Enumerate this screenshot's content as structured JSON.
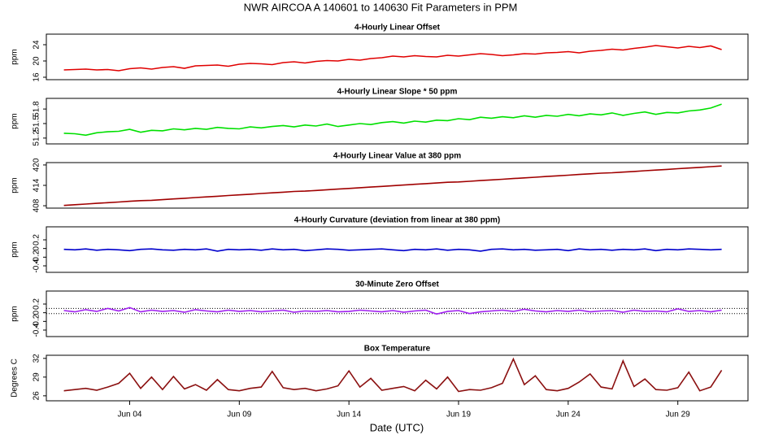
{
  "title": "NWR   AIRCOA A   140601 to 140630   Fit Parameters in PPM",
  "xlabel": "Date (UTC)",
  "chart_data": [
    {
      "type": "line",
      "title": "4-Hourly Linear Offset",
      "ylabel": "ppm",
      "color": "#e00000",
      "xlim": [
        0.2,
        32.2
      ],
      "ylim": [
        15.4,
        26.6
      ],
      "yticks": [
        16,
        20,
        24
      ],
      "x": [
        1,
        1.5,
        2,
        2.5,
        3,
        3.5,
        4,
        4.5,
        5,
        5.5,
        6,
        6.5,
        7,
        7.5,
        8,
        8.5,
        9,
        9.5,
        10,
        10.5,
        11,
        11.5,
        12,
        12.5,
        13,
        13.5,
        14,
        14.5,
        15,
        15.5,
        16,
        16.5,
        17,
        17.5,
        18,
        18.5,
        19,
        19.5,
        20,
        20.5,
        21,
        21.5,
        22,
        22.5,
        23,
        23.5,
        24,
        24.5,
        25,
        25.5,
        26,
        26.5,
        27,
        27.5,
        28,
        28.5,
        29,
        29.5,
        30,
        30.5,
        31
      ],
      "values": [
        17.8,
        17.9,
        18.0,
        17.8,
        17.9,
        17.6,
        18.1,
        18.3,
        18.0,
        18.4,
        18.6,
        18.2,
        18.8,
        18.9,
        19.0,
        18.7,
        19.2,
        19.4,
        19.3,
        19.1,
        19.6,
        19.8,
        19.5,
        19.9,
        20.1,
        20.0,
        20.4,
        20.2,
        20.6,
        20.8,
        21.2,
        21.0,
        21.3,
        21.1,
        21.0,
        21.4,
        21.2,
        21.5,
        21.8,
        21.6,
        21.3,
        21.5,
        21.8,
        21.7,
        22.0,
        22.1,
        22.3,
        22.0,
        22.4,
        22.6,
        22.9,
        22.7,
        23.1,
        23.4,
        23.8,
        23.5,
        23.2,
        23.6,
        23.3,
        23.7,
        22.8
      ]
    },
    {
      "type": "line",
      "title": "4-Hourly Linear Slope * 50 ppm",
      "ylabel": "ppm",
      "color": "#00e000",
      "xlim": [
        0.2,
        32.2
      ],
      "ylim": [
        51.08,
        52.02
      ],
      "yticks": [
        51.2,
        51.5,
        51.8
      ],
      "x": [
        1,
        1.5,
        2,
        2.5,
        3,
        3.5,
        4,
        4.5,
        5,
        5.5,
        6,
        6.5,
        7,
        7.5,
        8,
        8.5,
        9,
        9.5,
        10,
        10.5,
        11,
        11.5,
        12,
        12.5,
        13,
        13.5,
        14,
        14.5,
        15,
        15.5,
        16,
        16.5,
        17,
        17.5,
        18,
        18.5,
        19,
        19.5,
        20,
        20.5,
        21,
        21.5,
        22,
        22.5,
        23,
        23.5,
        24,
        24.5,
        25,
        25.5,
        26,
        26.5,
        27,
        27.5,
        28,
        28.5,
        29,
        29.5,
        30,
        30.5,
        31
      ],
      "values": [
        51.3,
        51.29,
        51.26,
        51.31,
        51.33,
        51.34,
        51.38,
        51.32,
        51.36,
        51.35,
        51.39,
        51.37,
        51.4,
        51.38,
        51.42,
        51.4,
        51.39,
        51.43,
        51.41,
        51.44,
        51.46,
        51.43,
        51.47,
        51.45,
        51.49,
        51.44,
        51.47,
        51.5,
        51.48,
        51.52,
        51.54,
        51.51,
        51.55,
        51.53,
        51.57,
        51.56,
        51.6,
        51.58,
        51.63,
        51.61,
        51.64,
        51.62,
        51.66,
        51.63,
        51.67,
        51.65,
        51.69,
        51.66,
        51.7,
        51.68,
        51.72,
        51.67,
        51.71,
        51.74,
        51.69,
        51.73,
        51.72,
        51.76,
        51.78,
        51.82,
        51.9
      ]
    },
    {
      "type": "line",
      "title": "4-Hourly Linear Value at 380 ppm",
      "ylabel": "ppm",
      "color": "#a00000",
      "xlim": [
        0.2,
        32.2
      ],
      "ylim": [
        407.3,
        420.7
      ],
      "yticks": [
        408,
        414,
        420
      ],
      "x": [
        1,
        1.5,
        2,
        2.5,
        3,
        3.5,
        4,
        4.5,
        5,
        5.5,
        6,
        6.5,
        7,
        7.5,
        8,
        8.5,
        9,
        9.5,
        10,
        10.5,
        11,
        11.5,
        12,
        12.5,
        13,
        13.5,
        14,
        14.5,
        15,
        15.5,
        16,
        16.5,
        17,
        17.5,
        18,
        18.5,
        19,
        19.5,
        20,
        20.5,
        21,
        21.5,
        22,
        22.5,
        23,
        23.5,
        24,
        24.5,
        25,
        25.5,
        26,
        26.5,
        27,
        27.5,
        28,
        28.5,
        29,
        29.5,
        30,
        30.5,
        31
      ],
      "values": [
        408.1,
        408.3,
        408.5,
        408.7,
        408.9,
        409.1,
        409.3,
        409.5,
        409.6,
        409.8,
        410.0,
        410.2,
        410.4,
        410.6,
        410.8,
        411.0,
        411.2,
        411.4,
        411.6,
        411.8,
        412.0,
        412.2,
        412.3,
        412.5,
        412.7,
        412.9,
        413.1,
        413.3,
        413.5,
        413.7,
        413.9,
        414.1,
        414.3,
        414.5,
        414.7,
        414.9,
        415.0,
        415.2,
        415.4,
        415.6,
        415.8,
        416.0,
        416.2,
        416.4,
        416.6,
        416.8,
        417.0,
        417.2,
        417.4,
        417.6,
        417.7,
        417.9,
        418.1,
        418.3,
        418.5,
        418.7,
        418.9,
        419.1,
        419.3,
        419.5,
        419.7
      ]
    },
    {
      "type": "line",
      "title": "4-Hourly Curvature (deviation from linear at 380 ppm)",
      "ylabel": "ppm",
      "color": "#0000cc",
      "xlim": [
        0.2,
        32.2
      ],
      "ylim": [
        -0.55,
        0.5
      ],
      "yticks": [
        -0.4,
        -0.2,
        0,
        0.2
      ],
      "x": [
        1,
        1.5,
        2,
        2.5,
        3,
        3.5,
        4,
        4.5,
        5,
        5.5,
        6,
        6.5,
        7,
        7.5,
        8,
        8.5,
        9,
        9.5,
        10,
        10.5,
        11,
        11.5,
        12,
        12.5,
        13,
        13.5,
        14,
        14.5,
        15,
        15.5,
        16,
        16.5,
        17,
        17.5,
        18,
        18.5,
        19,
        19.5,
        20,
        20.5,
        21,
        21.5,
        22,
        22.5,
        23,
        23.5,
        24,
        24.5,
        25,
        25.5,
        26,
        26.5,
        27,
        27.5,
        28,
        28.5,
        29,
        29.5,
        30,
        30.5,
        31
      ],
      "values": [
        -0.02,
        -0.03,
        -0.01,
        -0.04,
        -0.02,
        -0.03,
        -0.05,
        -0.02,
        -0.01,
        -0.03,
        -0.04,
        -0.02,
        -0.03,
        -0.01,
        -0.06,
        -0.02,
        -0.03,
        -0.02,
        -0.04,
        -0.01,
        -0.03,
        -0.02,
        -0.05,
        -0.03,
        -0.01,
        -0.02,
        -0.04,
        -0.03,
        -0.02,
        -0.01,
        -0.03,
        -0.05,
        -0.02,
        -0.03,
        -0.01,
        -0.04,
        -0.02,
        -0.03,
        -0.06,
        -0.02,
        -0.01,
        -0.03,
        -0.02,
        -0.04,
        -0.03,
        -0.02,
        -0.05,
        -0.01,
        -0.03,
        -0.02,
        -0.04,
        -0.02,
        -0.03,
        -0.01,
        -0.05,
        -0.02,
        -0.03,
        -0.01,
        -0.02,
        -0.03,
        -0.02
      ]
    },
    {
      "type": "line",
      "title": "30-Minute Zero Offset",
      "ylabel": "ppm",
      "color": "#a020f0",
      "xlim": [
        0.2,
        32.2
      ],
      "ylim": [
        -0.55,
        0.5
      ],
      "yticks": [
        -0.4,
        -0.2,
        0,
        0.2
      ],
      "ref_lines": [
        0.1,
        -0.02
      ],
      "x": [
        1,
        1.5,
        2,
        2.5,
        3,
        3.5,
        4,
        4.5,
        5,
        5.5,
        6,
        6.5,
        7,
        7.5,
        8,
        8.5,
        9,
        9.5,
        10,
        10.5,
        11,
        11.5,
        12,
        12.5,
        13,
        13.5,
        14,
        14.5,
        15,
        15.5,
        16,
        16.5,
        17,
        17.5,
        18,
        18.5,
        19,
        19.5,
        20,
        20.5,
        21,
        21.5,
        22,
        22.5,
        23,
        23.5,
        24,
        24.5,
        25,
        25.5,
        26,
        26.5,
        27,
        27.5,
        28,
        28.5,
        29,
        29.5,
        30,
        30.5,
        31
      ],
      "values": [
        0.05,
        0.02,
        0.07,
        0.03,
        0.1,
        0.04,
        0.12,
        0.02,
        0.06,
        0.03,
        0.05,
        0.01,
        0.07,
        0.04,
        0.02,
        0.06,
        0.03,
        0.05,
        0.02,
        0.04,
        0.06,
        0.01,
        0.04,
        0.03,
        0.05,
        0.02,
        0.03,
        0.06,
        0.04,
        0.02,
        0.05,
        0.01,
        0.04,
        0.06,
        -0.03,
        0.03,
        0.05,
        -0.02,
        0.02,
        0.04,
        0.06,
        0.03,
        0.08,
        0.04,
        0.02,
        0.05,
        0.03,
        0.06,
        0.02,
        0.04,
        0.05,
        0.01,
        0.06,
        0.03,
        0.04,
        0.02,
        0.09,
        0.03,
        0.05,
        0.02,
        0.06
      ]
    },
    {
      "type": "line",
      "title": "Box Temperature",
      "ylabel": "Degrees C",
      "color": "#8b1010",
      "xlim": [
        0.2,
        32.2
      ],
      "ylim": [
        25.2,
        32.5
      ],
      "yticks": [
        26,
        29,
        32
      ],
      "xticks": [
        {
          "value": 4,
          "label": "Jun 04"
        },
        {
          "value": 9,
          "label": "Jun 09"
        },
        {
          "value": 14,
          "label": "Jun 14"
        },
        {
          "value": 19,
          "label": "Jun 19"
        },
        {
          "value": 24,
          "label": "Jun 24"
        },
        {
          "value": 29,
          "label": "Jun 29"
        }
      ],
      "x": [
        1,
        1.5,
        2,
        2.5,
        3,
        3.5,
        4,
        4.5,
        5,
        5.5,
        6,
        6.5,
        7,
        7.5,
        8,
        8.5,
        9,
        9.5,
        10,
        10.5,
        11,
        11.5,
        12,
        12.5,
        13,
        13.5,
        14,
        14.5,
        15,
        15.5,
        16,
        16.5,
        17,
        17.5,
        18,
        18.5,
        19,
        19.5,
        20,
        20.5,
        21,
        21.5,
        22,
        22.5,
        23,
        23.5,
        24,
        24.5,
        25,
        25.5,
        26,
        26.5,
        27,
        27.5,
        28,
        28.5,
        29,
        29.5,
        30,
        30.5,
        31
      ],
      "values": [
        26.8,
        27.0,
        27.2,
        26.9,
        27.4,
        28.0,
        29.6,
        27.2,
        29.0,
        27.0,
        29.1,
        27.1,
        27.8,
        26.9,
        28.6,
        27.0,
        26.8,
        27.2,
        27.4,
        29.9,
        27.3,
        27.0,
        27.2,
        26.8,
        27.1,
        27.6,
        30.0,
        27.4,
        28.8,
        26.9,
        27.2,
        27.5,
        26.8,
        28.5,
        27.1,
        29.0,
        26.7,
        27.0,
        26.9,
        27.3,
        28.0,
        31.9,
        27.8,
        29.2,
        27.0,
        26.8,
        27.2,
        28.2,
        29.5,
        27.4,
        27.1,
        31.6,
        27.5,
        28.7,
        27.0,
        26.9,
        27.3,
        29.8,
        26.8,
        27.4,
        30.1
      ]
    }
  ]
}
